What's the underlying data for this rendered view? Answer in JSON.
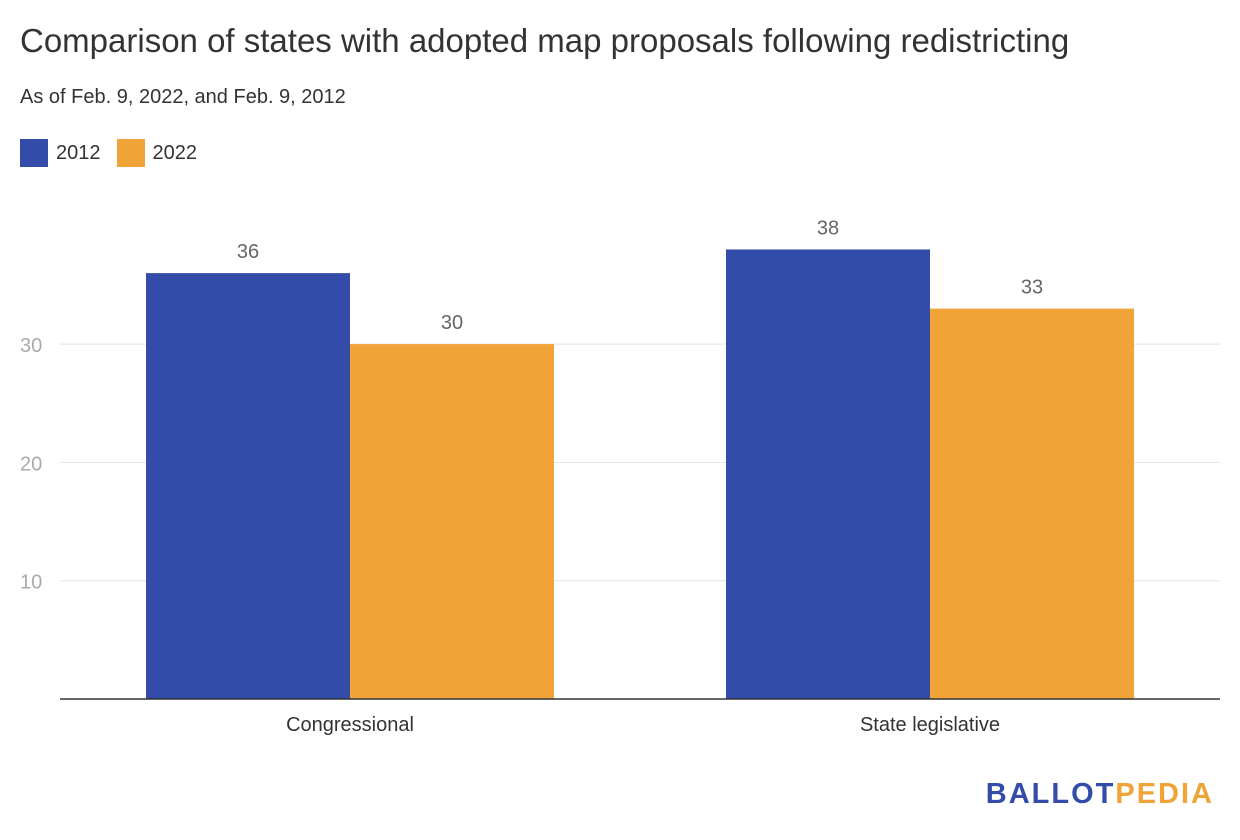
{
  "chart_data": {
    "type": "bar",
    "title": "Comparison of states with adopted map proposals following redistricting",
    "subtitle": "As of Feb. 9, 2022, and Feb. 9, 2012",
    "categories": [
      "Congressional",
      "State legislative"
    ],
    "series": [
      {
        "name": "2012",
        "values": [
          36,
          38
        ],
        "color": "#334ba9"
      },
      {
        "name": "2022",
        "values": [
          30,
          33
        ],
        "color": "#f0a336"
      }
    ],
    "yticks": [
      10,
      20,
      30
    ],
    "ylim": [
      0,
      40
    ],
    "grid": true,
    "legend": "top-left",
    "xlabel": "",
    "ylabel": ""
  },
  "logo": {
    "part1": "BALLOT",
    "part2": "PEDIA",
    "color1": "#334ba9",
    "color2": "#f0a336"
  }
}
